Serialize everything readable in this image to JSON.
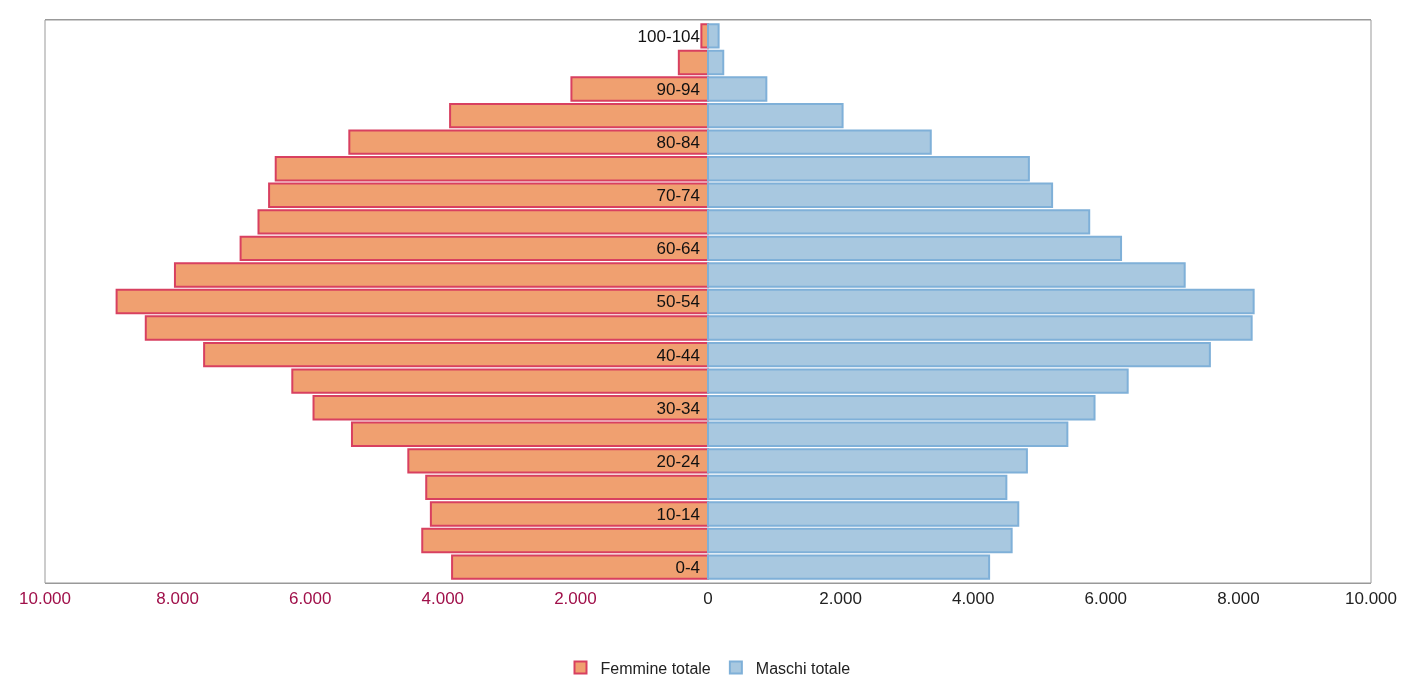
{
  "chart_data": {
    "type": "bar",
    "orientation": "horizontal",
    "stacked": true,
    "categories": [
      "100-104",
      null,
      "90-94",
      null,
      "80-84",
      null,
      "70-74",
      null,
      "60-64",
      null,
      "50-54",
      null,
      "40-44",
      null,
      "30-34",
      null,
      "20-24",
      null,
      "10-14",
      null,
      "0-4"
    ],
    "series": [
      {
        "name": "Femmine totale",
        "color": "#f0a070",
        "values": [
          -100,
          -440,
          -2060,
          -3890,
          -5410,
          -6520,
          -6620,
          -6780,
          -7050,
          -8040,
          -8920,
          -8480,
          -7600,
          -6270,
          -5950,
          -5370,
          -4520,
          -4250,
          -4180,
          -4310,
          -3860
        ]
      },
      {
        "name": "Maschi totale",
        "color": "#a8c8e0",
        "values": [
          160,
          230,
          880,
          2030,
          3360,
          4840,
          5190,
          5750,
          6230,
          7190,
          8230,
          8200,
          7570,
          6330,
          5830,
          5420,
          4810,
          4500,
          4680,
          4580,
          4240
        ]
      }
    ],
    "xlim": [
      -10000,
      10000
    ],
    "xticks": [
      {
        "value": -10000,
        "label": "10.000"
      },
      {
        "value": -8000,
        "label": "8.000"
      },
      {
        "value": -6000,
        "label": "6.000"
      },
      {
        "value": -4000,
        "label": "4.000"
      },
      {
        "value": -2000,
        "label": "2.000"
      },
      0,
      {
        "value": 2000,
        "label": "2.000"
      },
      {
        "value": 4000,
        "label": "4.000"
      },
      {
        "value": 6000,
        "label": "6.000"
      },
      {
        "value": 8000,
        "label": "8.000"
      },
      {
        "value": 10000,
        "label": "10.000"
      }
    ],
    "legend": "bottom"
  }
}
